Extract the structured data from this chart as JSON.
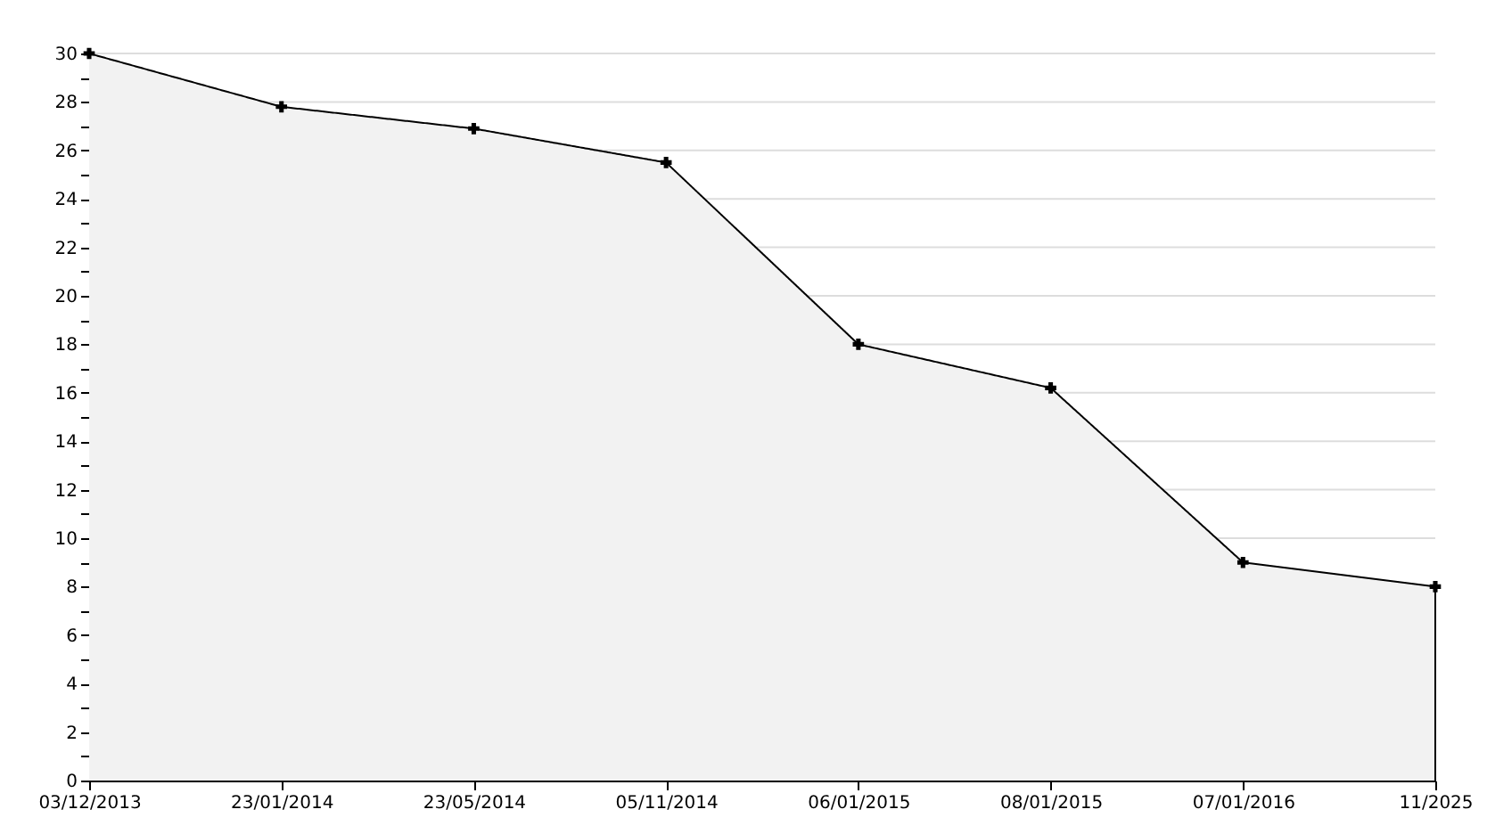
{
  "chart_data": {
    "type": "area",
    "categories": [
      "03/12/2013",
      "23/01/2014",
      "23/05/2014",
      "05/11/2014",
      "06/01/2015",
      "08/01/2015",
      "07/01/2016",
      "11/2025"
    ],
    "series": [
      {
        "color": "#f2f2f2",
        "values": [
          30,
          27.8,
          26.9,
          25.5,
          18.0,
          16.2,
          9.0,
          8.0
        ]
      }
    ],
    "ylim": [
      0,
      30
    ],
    "yticks": [
      0,
      {
        "value": 1,
        "label": null
      },
      2,
      {
        "value": 3,
        "label": null
      },
      4,
      {
        "value": 5,
        "label": null
      },
      6,
      {
        "value": 7,
        "label": null
      },
      8,
      {
        "value": 9,
        "label": null
      },
      10,
      {
        "value": 11,
        "label": null
      },
      12,
      {
        "value": 13,
        "label": null
      },
      14,
      {
        "value": 15,
        "label": null
      },
      16,
      {
        "value": 17,
        "label": null
      },
      18,
      {
        "value": 19,
        "label": null
      },
      20,
      {
        "value": 21,
        "label": null
      },
      22,
      {
        "value": 23,
        "label": null
      },
      24,
      {
        "value": 25,
        "label": null
      },
      26,
      {
        "value": 27,
        "label": null
      },
      28,
      {
        "value": 29,
        "label": null
      },
      30
    ],
    "grid": "y",
    "marker": "cross",
    "line_style": "solid"
  }
}
